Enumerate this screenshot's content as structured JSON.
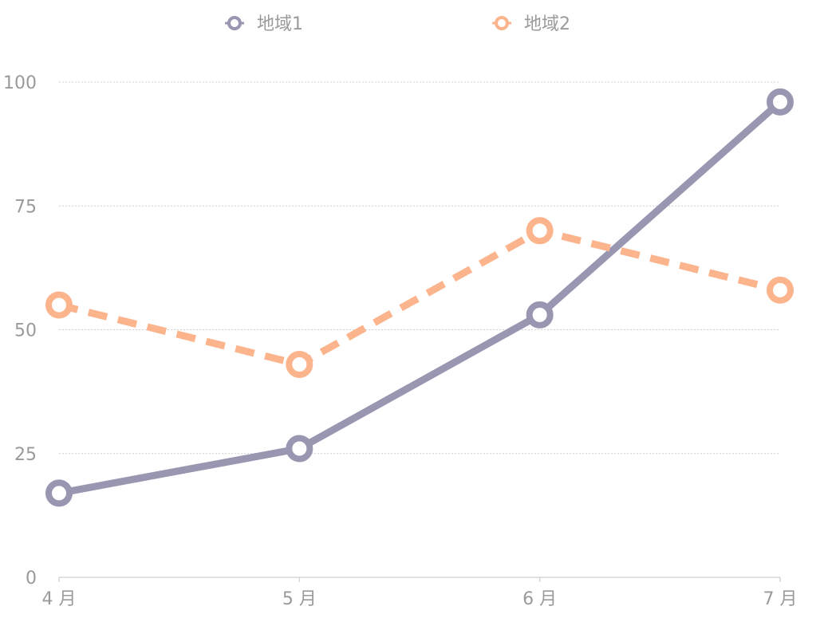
{
  "chart_data": {
    "type": "line",
    "title": "",
    "xlabel": "",
    "ylabel": "",
    "categories": [
      "4 月",
      "5 月",
      "6 月",
      "7 月"
    ],
    "ylim": [
      0,
      100
    ],
    "yticks": [
      "0",
      "25",
      "50",
      "75",
      "100"
    ],
    "grid": true,
    "legend_position": "top",
    "series": [
      {
        "name": "地域1",
        "values": [
          17,
          26,
          53,
          96
        ],
        "color": "#9896b1",
        "dashed": false
      },
      {
        "name": "地域2",
        "values": [
          55,
          43,
          70,
          58
        ],
        "color": "#fcb48d",
        "dashed": true
      }
    ]
  }
}
